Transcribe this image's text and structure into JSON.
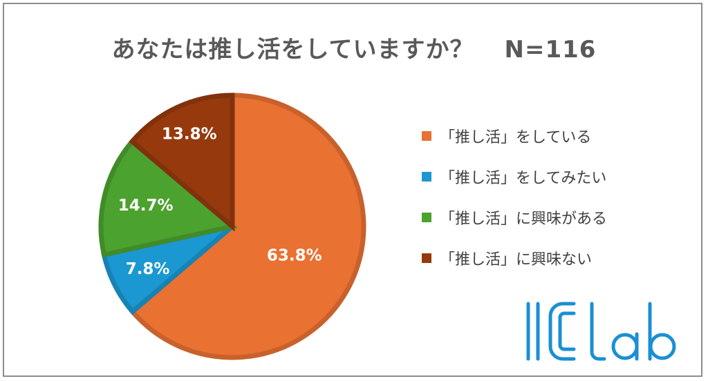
{
  "chart_data": {
    "type": "pie",
    "title": "あなたは推し活をしていますか？",
    "sample_size": "N=116",
    "slices": [
      {
        "label": "「推し活」をしている",
        "value": 63.8,
        "value_label": "63.8%",
        "color": "#E97132"
      },
      {
        "label": "「推し活」をしてみたい",
        "value": 7.8,
        "value_label": "7.8%",
        "color": "#1B98D1"
      },
      {
        "label": "「推し活」に興味がある",
        "value": 14.7,
        "value_label": "14.7%",
        "color": "#4CA22F"
      },
      {
        "label": "「推し活」に興味ない",
        "value": 13.8,
        "value_label": "13.8%",
        "color": "#963A0E"
      }
    ],
    "start": "12 o'clock",
    "direction": "clockwise",
    "legend_position": "right"
  },
  "logo": {
    "text": "ICLab",
    "color": "#1B8FD3"
  }
}
